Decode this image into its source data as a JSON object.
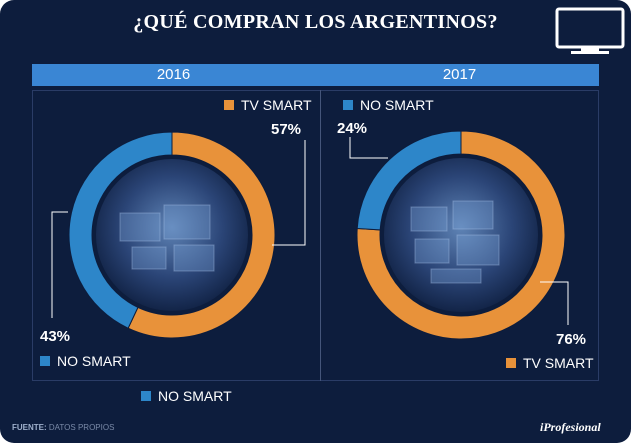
{
  "title": "¿QUÉ COMPRAN LOS ARGENTINOS?",
  "icon": "tv-icon",
  "colors": {
    "smart": "#e8923a",
    "no_smart": "#2d86c9",
    "background": "#0d1d3d",
    "header": "#3a86d4"
  },
  "chart_data": [
    {
      "type": "pie",
      "style": "donut",
      "title": "2016",
      "slices": [
        {
          "label": "TV SMART",
          "value": 57,
          "display": "57%"
        },
        {
          "label": "NO SMART",
          "value": 43,
          "display": "43%"
        }
      ]
    },
    {
      "type": "pie",
      "style": "donut",
      "title": "2017",
      "slices": [
        {
          "label": "TV SMART",
          "value": 76,
          "display": "76%"
        },
        {
          "label": "NO SMART",
          "value": 24,
          "display": "24%"
        }
      ]
    }
  ],
  "bottom_legend": "NO SMART",
  "footer": {
    "source_label": "FUENTE:",
    "source_text": "DATOS PROPIOS",
    "brand": "iProfesional"
  }
}
